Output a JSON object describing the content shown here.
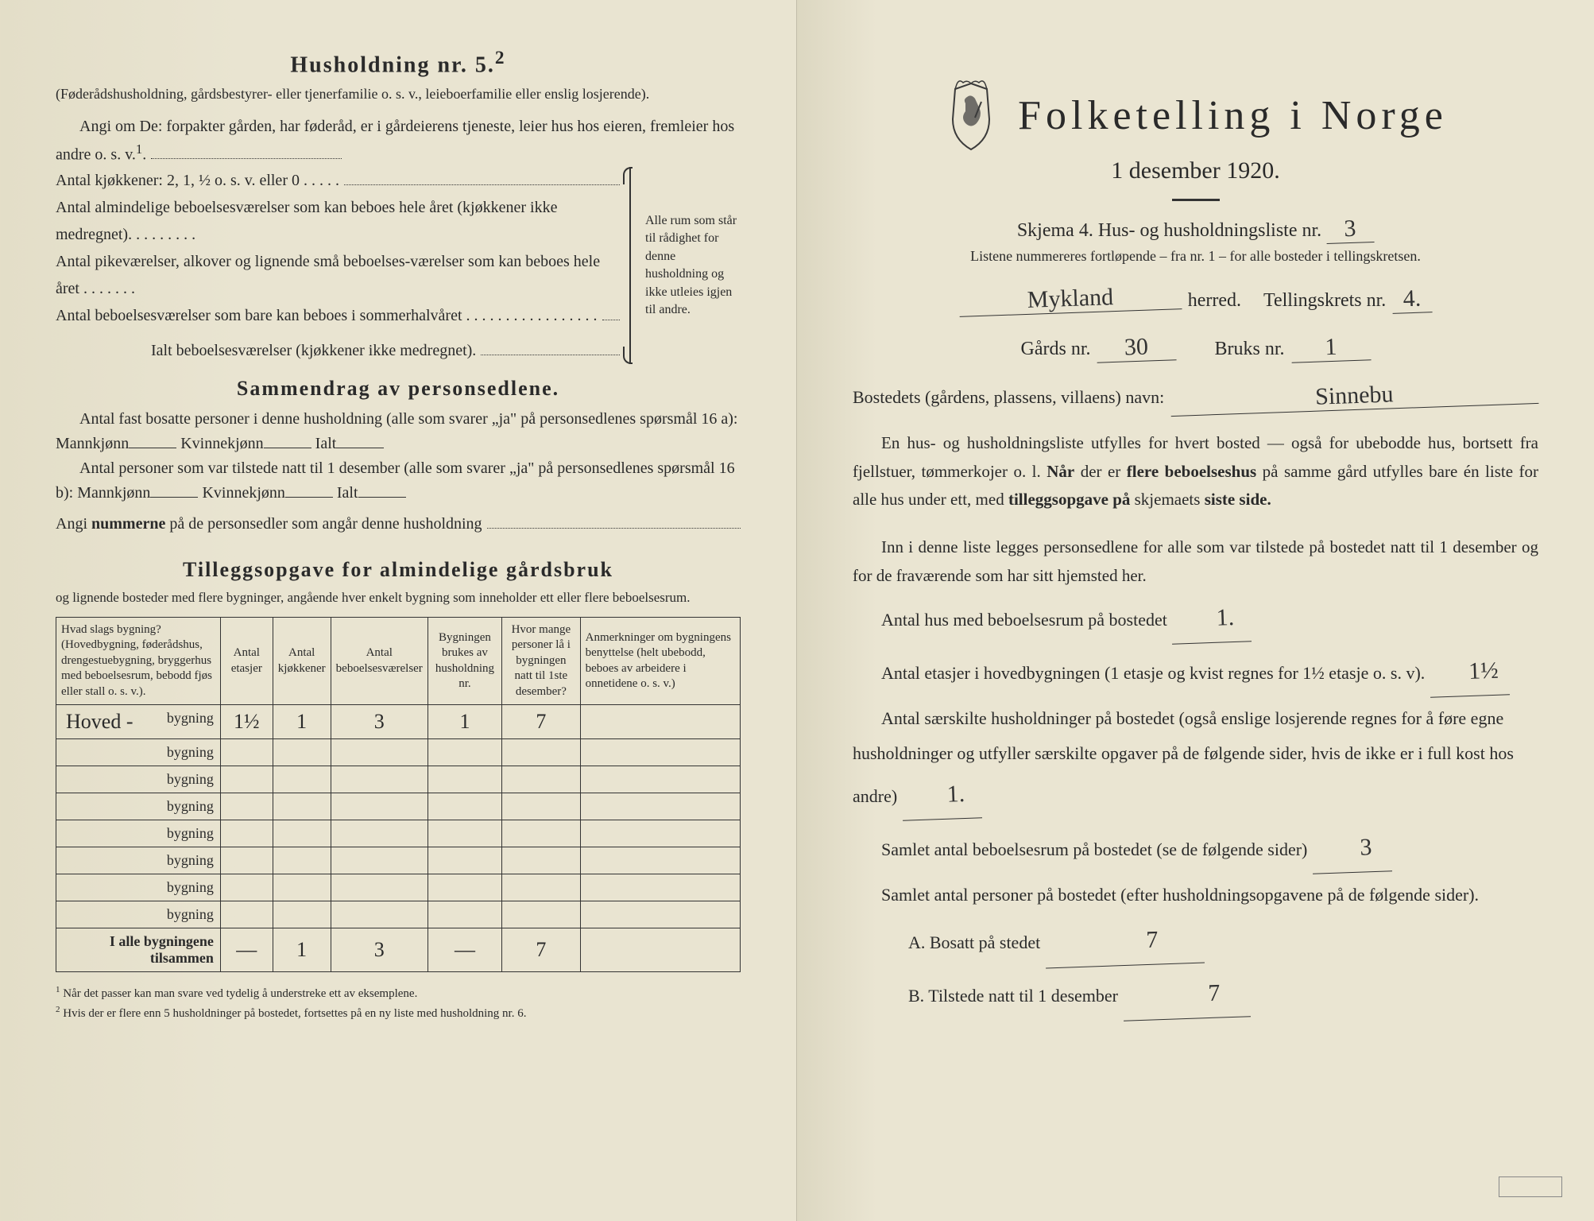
{
  "left": {
    "household_title": "Husholdning nr. 5.",
    "household_sup": "2",
    "household_intro": "(Føderådshusholdning, gårdsbestyrer- eller tjenerfamilie o. s. v., leieboerfamilie eller enslig losjerende).",
    "household_angi": "Angi om De:  forpakter gården, har føderåd, er i gårdeierens tjeneste, leier hus hos eieren, fremleier hos andre o. s. v.",
    "kitchens_line": "Antal kjøkkener: 2, 1, ½ o. s. v. eller 0 . . . . .",
    "rooms_line": "Antal almindelige beboelsesværelser som kan beboes hele året (kjøkkener ikke medregnet). . . . . . . . .",
    "pike_line": "Antal pikeværelser, alkover og lignende små beboelses-værelser som kan beboes hele året . . . . . . .",
    "summer_line": "Antal beboelsesværelser som bare kan beboes i sommerhalvåret . . . . . . . . . . . . . . . . .",
    "total_line": "Ialt beboelsesværelser  (kjøkkener ikke medregnet).",
    "brace_text": "Alle rum som står til rådighet for denne husholdning og ikke utleies igjen til andre.",
    "summary_title": "Sammendrag av personsedlene.",
    "summary_l1": "Antal fast bosatte personer i denne husholdning (alle som svarer „ja\" på personsedlenes spørsmål 16 a):  Mannkjønn",
    "summary_kvinne": "Kvinnekjønn",
    "summary_ialt": "Ialt",
    "summary_l2": "Antal personer som var tilstede natt til 1 desember (alle som svarer „ja\" på personsedlenes spørsmål 16 b):  Mannkjønn",
    "summary_l3": "Angi nummerne på de personsedler som angår denne husholdning",
    "tillegg_title": "Tilleggsopgave for almindelige gårdsbruk",
    "tillegg_sub": "og lignende bosteder med flere bygninger, angående hver enkelt bygning som inneholder ett eller flere beboelsesrum.",
    "table": {
      "headers": [
        "Hvad slags bygning?\n(Hovedbygning, føderådshus, drengestuebygning, bryggerhus med beboelsesrum, bebodd fjøs eller stall o. s. v.).",
        "Antal etasjer",
        "Antal kjøkkener",
        "Antal beboelsesværelser",
        "Bygningen brukes av husholdning nr.",
        "Hvor mange personer lå i bygningen natt til 1ste desember?",
        "Anmerkninger om bygningens benyttelse (helt ubebodd, beboes av arbeidere i onnetidene o. s. v.)"
      ],
      "row_suffix": "bygning",
      "row1": {
        "prefix": "Hoved -",
        "c1": "1½",
        "c2": "1",
        "c3": "3",
        "c4": "1",
        "c5": "7",
        "c6": ""
      },
      "empty_rows": 7,
      "totals_label": "I alle bygningene tilsammen",
      "totals": {
        "c1": "—",
        "c2": "1",
        "c3": "3",
        "c4": "—",
        "c5": "7",
        "c6": ""
      }
    },
    "footnote1": "Når det passer kan man svare ved tydelig å understreke ett av eksemplene.",
    "footnote2": "Hvis der er flere enn 5 husholdninger på bostedet, fortsettes på en ny liste med husholdning nr. 6."
  },
  "right": {
    "title": "Folketelling i Norge",
    "date": "1 desember 1920.",
    "skjema_prefix": "Skjema 4.  Hus- og husholdningsliste nr.",
    "skjema_nr": "3",
    "instruct": "Listene nummereres fortløpende – fra nr. 1 – for alle bosteder i tellingskretsen.",
    "herred_value": "Mykland",
    "herred_label": "herred.",
    "krets_label": "Tellingskrets nr.",
    "krets_value": "4.",
    "gard_label": "Gårds nr.",
    "gard_value": "30",
    "bruk_label": "Bruks nr.",
    "bruk_value": "1",
    "bosted_label": "Bostedets (gårdens, plassens, villaens) navn:",
    "bosted_value": "Sinnebu",
    "para1": "En hus- og husholdningsliste utfylles for hvert bosted — også for ubebodde hus, bortsett fra fjellstuer, tømmerkojer o. l.  Når der er flere beboelseshus på samme gård utfylles bare én liste for alle hus under ett, med tilleggsopgave på skjemaets siste side.",
    "para2": "Inn i denne liste legges personsedlene for alle som var tilstede på bostedet natt til 1 desember og for de fraværende som har sitt hjemsted her.",
    "q1": "Antal hus med beboelsesrum på bostedet",
    "q1_val": "1.",
    "q2a": "Antal etasjer i hovedbygningen (1 etasje og kvist regnes for 1½ etasje o. s. v).",
    "q2_val": "1½",
    "q3": "Antal særskilte husholdninger på bostedet (også enslige losjerende regnes for å føre egne husholdninger og utfyller særskilte opgaver på de følgende sider, hvis de ikke er i full kost hos andre)",
    "q3_val": "1.",
    "q4": "Samlet antal beboelsesrum på bostedet (se de følgende sider)",
    "q4_val": "3",
    "q5": "Samlet antal personer på bostedet (efter husholdningsopgavene på de følgende sider).",
    "qA": "A.  Bosatt på stedet",
    "qA_val": "7",
    "qB": "B.  Tilstede natt til 1 desember",
    "qB_val": "7"
  }
}
